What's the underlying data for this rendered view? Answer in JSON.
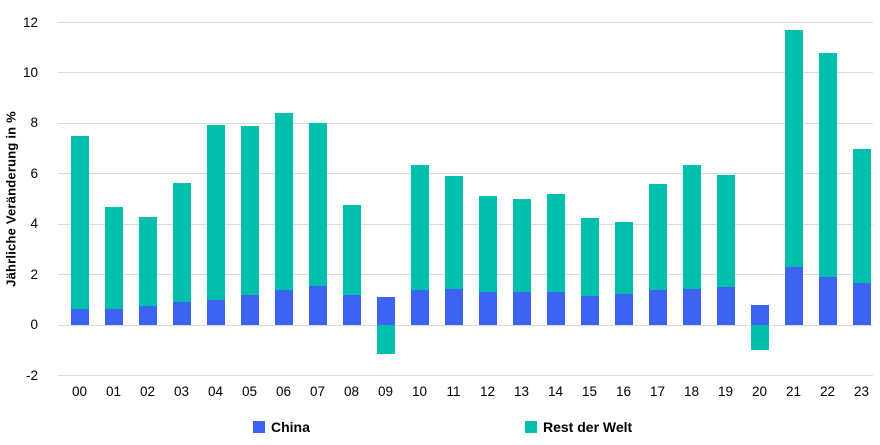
{
  "chart_data": {
    "type": "bar",
    "stacked": true,
    "title": "",
    "xlabel": "",
    "ylabel": "Jährliche Veränderung in %",
    "categories": [
      "00",
      "01",
      "02",
      "03",
      "04",
      "05",
      "06",
      "07",
      "08",
      "09",
      "10",
      "11",
      "12",
      "13",
      "14",
      "15",
      "16",
      "17",
      "18",
      "19",
      "20",
      "21",
      "22",
      "23"
    ],
    "series": [
      {
        "name": "China",
        "color": "#3d63f2",
        "values": [
          0.65,
          0.65,
          0.75,
          0.9,
          1.0,
          1.2,
          1.4,
          1.55,
          1.2,
          1.1,
          1.4,
          1.45,
          1.3,
          1.3,
          1.3,
          1.15,
          1.25,
          1.4,
          1.45,
          1.5,
          0.8,
          2.3,
          1.9,
          1.65
        ]
      },
      {
        "name": "Rest der Welt",
        "color": "#00bfad",
        "values": [
          6.85,
          4.05,
          3.55,
          4.75,
          6.95,
          6.7,
          7.0,
          6.45,
          3.55,
          -1.15,
          4.95,
          4.45,
          3.8,
          3.7,
          3.9,
          3.1,
          2.85,
          4.2,
          4.9,
          4.45,
          -1.0,
          9.4,
          8.9,
          5.35
        ]
      }
    ],
    "ylim": [
      -2,
      12
    ],
    "yticks": [
      12,
      10,
      8,
      6,
      4,
      2,
      0,
      -2
    ],
    "grid": true,
    "gridline_color": "#dadada",
    "legend_position": "bottom"
  }
}
